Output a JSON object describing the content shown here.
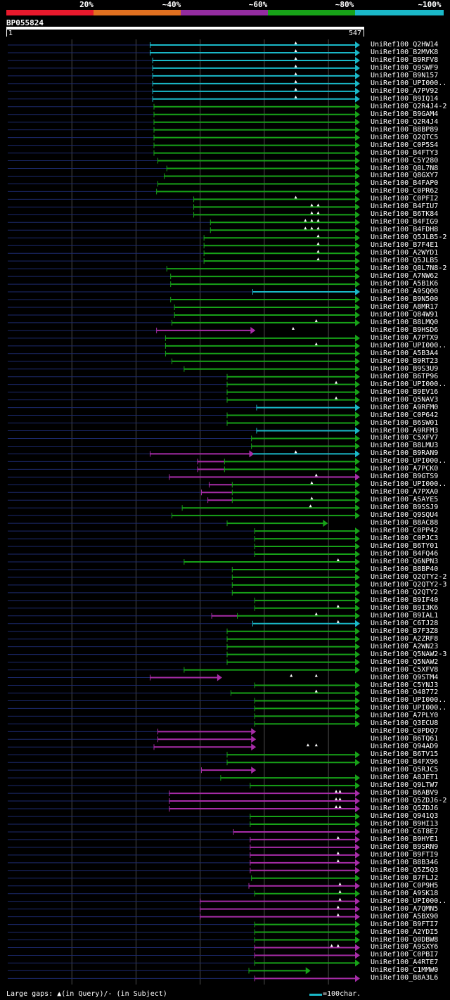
{
  "legend": {
    "labels": [
      "20%",
      "~40%",
      "~60%",
      "~80%",
      "~100%"
    ],
    "colors": [
      "#e8192c",
      "#e07020",
      "#932ca0",
      "#17a218",
      "#1ab8c8"
    ]
  },
  "query": {
    "id": "BP055824",
    "start": "1",
    "end": "547",
    "length": 547
  },
  "colors": {
    "cyan": "#1ab8c8",
    "green": "#17a218",
    "purple": "#a72ca8",
    "navy": "#1c2a6e",
    "grid": "#4a4a4a"
  },
  "footer": {
    "gaps_text": "Large gaps: ▲(in Query)/- (in Subject)",
    "scale_text": "=100char."
  },
  "chart_data": {
    "type": "alignment-overview",
    "query_length": 547,
    "hits": [
      {
        "label": "UniRef100_Q2HW14",
        "c": "cyan",
        "s": 222,
        "gaps": [
          449
        ]
      },
      {
        "label": "UniRef100_B2MVK8",
        "c": "cyan",
        "s": 222,
        "gaps": [
          449
        ]
      },
      {
        "label": "UniRef100_B9RFV8",
        "c": "cyan",
        "s": 226,
        "gaps": [
          449
        ]
      },
      {
        "label": "UniRef100_Q9SWF9",
        "c": "cyan",
        "s": 226,
        "gaps": [
          449
        ]
      },
      {
        "label": "UniRef100_B9N157",
        "c": "cyan",
        "s": 226,
        "gaps": [
          449
        ]
      },
      {
        "label": "UniRef100_UPI000..",
        "c": "cyan",
        "s": 226,
        "gaps": [
          449
        ]
      },
      {
        "label": "UniRef100_A7PV92",
        "c": "cyan",
        "s": 226,
        "gaps": [
          449
        ]
      },
      {
        "label": "UniRef100_B9IQ14",
        "c": "cyan",
        "s": 226,
        "gaps": [
          449
        ]
      },
      {
        "label": "UniRef100_Q2R4J4-2",
        "c": "green",
        "s": 228
      },
      {
        "label": "UniRef100_B9GAM4",
        "c": "green",
        "s": 228
      },
      {
        "label": "UniRef100_Q2R4J4",
        "c": "green",
        "s": 228
      },
      {
        "label": "UniRef100_B8BP89",
        "c": "green",
        "s": 228
      },
      {
        "label": "UniRef100_Q2QTC5",
        "c": "green",
        "s": 228
      },
      {
        "label": "UniRef100_C0P5S4",
        "c": "green",
        "s": 228
      },
      {
        "label": "UniRef100_B4FTY3",
        "c": "green",
        "s": 228
      },
      {
        "label": "UniRef100_C5Y280",
        "c": "green",
        "s": 234
      },
      {
        "label": "UniRef100_Q8L7N8",
        "c": "green",
        "s": 248
      },
      {
        "label": "UniRef100_Q8GXY7",
        "c": "green",
        "s": 244
      },
      {
        "label": "UniRef100_B4FAP0",
        "c": "green",
        "s": 234
      },
      {
        "label": "UniRef100_C0PR62",
        "c": "green",
        "s": 232
      },
      {
        "label": "UniRef100_C0PFI2",
        "c": "green",
        "s": 290,
        "gaps": [
          449
        ]
      },
      {
        "label": "UniRef100_B4FIU7",
        "c": "green",
        "s": 290,
        "gaps": [
          474,
          484
        ]
      },
      {
        "label": "UniRef100_B6TK84",
        "c": "green",
        "s": 290,
        "gaps": [
          474,
          484
        ]
      },
      {
        "label": "UniRef100_B4FIG9",
        "c": "green",
        "s": 316,
        "gaps": [
          464,
          474,
          484
        ]
      },
      {
        "label": "UniRef100_B4FDH8",
        "c": "green",
        "s": 316,
        "gaps": [
          464,
          474,
          484
        ]
      },
      {
        "label": "UniRef100_Q5JLB5-2",
        "c": "green",
        "s": 306,
        "gaps": [
          484
        ]
      },
      {
        "label": "UniRef100_B7F4E1",
        "c": "green",
        "s": 306,
        "gaps": [
          484
        ]
      },
      {
        "label": "UniRef100_A2WYD1",
        "c": "green",
        "s": 306,
        "gaps": [
          484
        ]
      },
      {
        "label": "UniRef100_Q5JLB5",
        "c": "green",
        "s": 306,
        "gaps": [
          484
        ]
      },
      {
        "label": "UniRef100_Q8L7N8-2",
        "c": "green",
        "s": 248
      },
      {
        "label": "UniRef100_A7NW62",
        "c": "green",
        "s": 254
      },
      {
        "label": "UniRef100_A5B1K6",
        "c": "green",
        "s": 254
      },
      {
        "label": "UniRef100_A9SQ00",
        "c": "cyan",
        "s": 382
      },
      {
        "label": "UniRef100_B9N500",
        "c": "green",
        "s": 254
      },
      {
        "label": "UniRef100_A8MR17",
        "c": "green",
        "s": 260
      },
      {
        "label": "UniRef100_Q84W91",
        "c": "green",
        "s": 260
      },
      {
        "label": "UniRef100_B8LMQ0",
        "c": "green",
        "s": 256,
        "gaps": [
          481
        ]
      },
      {
        "label": "UniRef100_B9HSD6",
        "c": "purple",
        "s": 232,
        "e": 384,
        "gaps": [
          445
        ]
      },
      {
        "label": "UniRef100_A7PTX9",
        "c": "green",
        "s": 246
      },
      {
        "label": "UniRef100_UPI000..",
        "c": "green",
        "s": 246,
        "gaps": [
          481
        ]
      },
      {
        "label": "UniRef100_A5B3A4",
        "c": "green",
        "s": 246
      },
      {
        "label": "UniRef100_B9RT23",
        "c": "green",
        "s": 256
      },
      {
        "label": "UniRef100_B9S3U9",
        "c": "green",
        "s": 275
      },
      {
        "label": "UniRef100_B6TP96",
        "c": "green",
        "s": 342
      },
      {
        "label": "UniRef100_UPI000..",
        "c": "green",
        "s": 342,
        "gaps": [
          512
        ]
      },
      {
        "label": "UniRef100_B9EV16",
        "c": "green",
        "s": 342
      },
      {
        "label": "UniRef100_Q5NAV3",
        "c": "green",
        "s": 342,
        "gaps": [
          512
        ]
      },
      {
        "label": "UniRef100_A9RFM0",
        "c": "cyan",
        "s": 388
      },
      {
        "label": "UniRef100_C0P642",
        "c": "green",
        "s": 342
      },
      {
        "label": "UniRef100_B6SW01",
        "c": "green",
        "s": 342
      },
      {
        "label": "UniRef100_A9RFM3",
        "c": "cyan",
        "s": 388
      },
      {
        "label": "UniRef100_C5XFV7",
        "c": "green",
        "s": 380
      },
      {
        "label": "UniRef100_B8LMU3",
        "c": "green",
        "s": 380
      },
      {
        "label": "UniRef100_B9RAN9",
        "c": "purple",
        "s": 222,
        "e": 382,
        "ext": {
          "c": "cyan",
          "s": 382
        },
        "gaps": [
          449
        ]
      },
      {
        "label": "UniRef100_UPI000..",
        "c": "green",
        "s": 338,
        "seg": {
          "c": "purple",
          "s": 296,
          "e": 338
        }
      },
      {
        "label": "UniRef100_A7PCK0",
        "c": "green",
        "s": 338,
        "seg": {
          "c": "purple",
          "s": 296,
          "e": 338
        }
      },
      {
        "label": "UniRef100_B9GTS9",
        "c": "purple",
        "s": 252,
        "gaps": [
          481
        ]
      },
      {
        "label": "UniRef100_UPI000..",
        "c": "green",
        "s": 350,
        "seg": {
          "c": "purple",
          "s": 314,
          "e": 350
        },
        "gaps": [
          474
        ]
      },
      {
        "label": "UniRef100_A7PXA0",
        "c": "green",
        "s": 350,
        "seg": {
          "c": "purple",
          "s": 302,
          "e": 350
        }
      },
      {
        "label": "UniRef100_A5AYE5",
        "c": "green",
        "s": 350,
        "seg": {
          "c": "purple",
          "s": 312,
          "e": 350
        },
        "gaps": [
          474
        ]
      },
      {
        "label": "UniRef100_B9SSJ9",
        "c": "green",
        "s": 272,
        "gaps": [
          472
        ]
      },
      {
        "label": "UniRef100_Q9SQU4",
        "c": "green",
        "s": 256
      },
      {
        "label": "UniRef100_B8AC88",
        "c": "green",
        "s": 342,
        "e": 497
      },
      {
        "label": "UniRef100_C0PP42",
        "c": "green",
        "s": 385
      },
      {
        "label": "UniRef100_C0PJC3",
        "c": "green",
        "s": 385
      },
      {
        "label": "UniRef100_B6TY01",
        "c": "green",
        "s": 385
      },
      {
        "label": "UniRef100_B4FQ46",
        "c": "green",
        "s": 385
      },
      {
        "label": "UniRef100_Q6NPN3",
        "c": "green",
        "s": 275,
        "gaps": [
          515
        ]
      },
      {
        "label": "UniRef100_B8BP40",
        "c": "green",
        "s": 350
      },
      {
        "label": "UniRef100_Q2QTY2-2",
        "c": "green",
        "s": 350
      },
      {
        "label": "UniRef100_Q2QTY2-3",
        "c": "green",
        "s": 350
      },
      {
        "label": "UniRef100_Q2QTY2",
        "c": "green",
        "s": 350
      },
      {
        "label": "UniRef100_B9IF40",
        "c": "green",
        "s": 385
      },
      {
        "label": "UniRef100_B9I3K6",
        "c": "green",
        "s": 385,
        "gaps": [
          515
        ]
      },
      {
        "label": "UniRef100_B9IAL1",
        "c": "green",
        "s": 358,
        "seg": {
          "c": "purple",
          "s": 318,
          "e": 358
        },
        "gaps": [
          481
        ]
      },
      {
        "label": "UniRef100_C6TJ28",
        "c": "cyan",
        "s": 382,
        "gaps": [
          515
        ]
      },
      {
        "label": "UniRef100_B7F3Z8",
        "c": "green",
        "s": 342
      },
      {
        "label": "UniRef100_A2ZRF8",
        "c": "green",
        "s": 342
      },
      {
        "label": "UniRef100_A2WN23",
        "c": "green",
        "s": 342
      },
      {
        "label": "UniRef100_Q5NAW2-3",
        "c": "green",
        "s": 342
      },
      {
        "label": "UniRef100_Q5NAW2",
        "c": "green",
        "s": 342
      },
      {
        "label": "UniRef100_C5XFV8",
        "c": "green",
        "s": 275
      },
      {
        "label": "UniRef100_Q9STM4",
        "c": "purple",
        "s": 222,
        "e": 332,
        "gaps": [
          442,
          481
        ]
      },
      {
        "label": "UniRef100_C5YNJ3",
        "c": "green",
        "s": 385
      },
      {
        "label": "UniRef100_O48772",
        "c": "green",
        "s": 348,
        "gaps": [
          481
        ]
      },
      {
        "label": "UniRef100_UPI000..",
        "c": "green",
        "s": 385
      },
      {
        "label": "UniRef100_UPI000..",
        "c": "green",
        "s": 385
      },
      {
        "label": "UniRef100_A7PLY0",
        "c": "green",
        "s": 385
      },
      {
        "label": "UniRef100_Q3ECU8",
        "c": "green",
        "s": 385
      },
      {
        "label": "UniRef100_C0PDQ7",
        "c": "purple",
        "s": 234,
        "e": 385
      },
      {
        "label": "UniRef100_B6TQ61",
        "c": "purple",
        "s": 234,
        "e": 385
      },
      {
        "label": "UniRef100_Q94AD9",
        "c": "purple",
        "s": 228,
        "e": 385,
        "gaps": [
          468,
          481
        ]
      },
      {
        "label": "UniRef100_B6TV15",
        "c": "green",
        "s": 342
      },
      {
        "label": "UniRef100_B4FX96",
        "c": "green",
        "s": 342
      },
      {
        "label": "UniRef100_Q5RJC5",
        "c": "purple",
        "s": 302,
        "e": 385
      },
      {
        "label": "UniRef100_A8JET1",
        "c": "green",
        "s": 332
      },
      {
        "label": "UniRef100_Q9LTW7",
        "c": "green",
        "s": 378
      },
      {
        "label": "UniRef100_B6ABV9",
        "c": "purple",
        "s": 252,
        "gaps": [
          512,
          518
        ]
      },
      {
        "label": "UniRef100_Q5ZDJ6-2",
        "c": "purple",
        "s": 252,
        "gaps": [
          512,
          518
        ]
      },
      {
        "label": "UniRef100_Q5ZDJ6",
        "c": "purple",
        "s": 252,
        "gaps": [
          512,
          518
        ]
      },
      {
        "label": "UniRef100_Q941Q3",
        "c": "green",
        "s": 378
      },
      {
        "label": "UniRef100_B9HI13",
        "c": "green",
        "s": 378
      },
      {
        "label": "UniRef100_C6T8E7",
        "c": "purple",
        "s": 352
      },
      {
        "label": "UniRef100_B9HYE1",
        "c": "purple",
        "s": 378,
        "gaps": [
          515
        ]
      },
      {
        "label": "UniRef100_B9SRN9",
        "c": "purple",
        "s": 378
      },
      {
        "label": "UniRef100_B9FTI9",
        "c": "purple",
        "s": 378,
        "gaps": [
          515
        ]
      },
      {
        "label": "UniRef100_B8B346",
        "c": "purple",
        "s": 378,
        "gaps": [
          515
        ]
      },
      {
        "label": "UniRef100_Q5Z5Q3",
        "c": "purple",
        "s": 378
      },
      {
        "label": "UniRef100_B7FLJ2",
        "c": "green",
        "s": 380
      },
      {
        "label": "UniRef100_C0P9H5",
        "c": "purple",
        "s": 376,
        "gaps": [
          518
        ]
      },
      {
        "label": "UniRef100_A9SK18",
        "c": "green",
        "s": 385,
        "gaps": [
          518
        ]
      },
      {
        "label": "UniRef100_UPI000..",
        "c": "purple",
        "s": 300,
        "gaps": [
          518
        ]
      },
      {
        "label": "UniRef100_A7QMN5",
        "c": "purple",
        "s": 300,
        "gaps": [
          515
        ]
      },
      {
        "label": "UniRef100_A5BX90",
        "c": "purple",
        "s": 300,
        "gaps": [
          515
        ]
      },
      {
        "label": "UniRef100_B9FTI7",
        "c": "green",
        "s": 385
      },
      {
        "label": "UniRef100_A2YDI5",
        "c": "green",
        "s": 385
      },
      {
        "label": "UniRef100_Q0DBW8",
        "c": "green",
        "s": 385
      },
      {
        "label": "UniRef100_A9SXY6",
        "c": "purple",
        "s": 385,
        "gaps": [
          505,
          515
        ]
      },
      {
        "label": "UniRef100_C0PBI7",
        "c": "purple",
        "s": 385
      },
      {
        "label": "UniRef100_A4RTE7",
        "c": "green",
        "s": 385
      },
      {
        "label": "UniRef100_C1MMW0",
        "c": "green",
        "s": 376,
        "e": 470
      },
      {
        "label": "UniRef100_B8A3L6",
        "c": "purple",
        "s": 385
      }
    ]
  }
}
